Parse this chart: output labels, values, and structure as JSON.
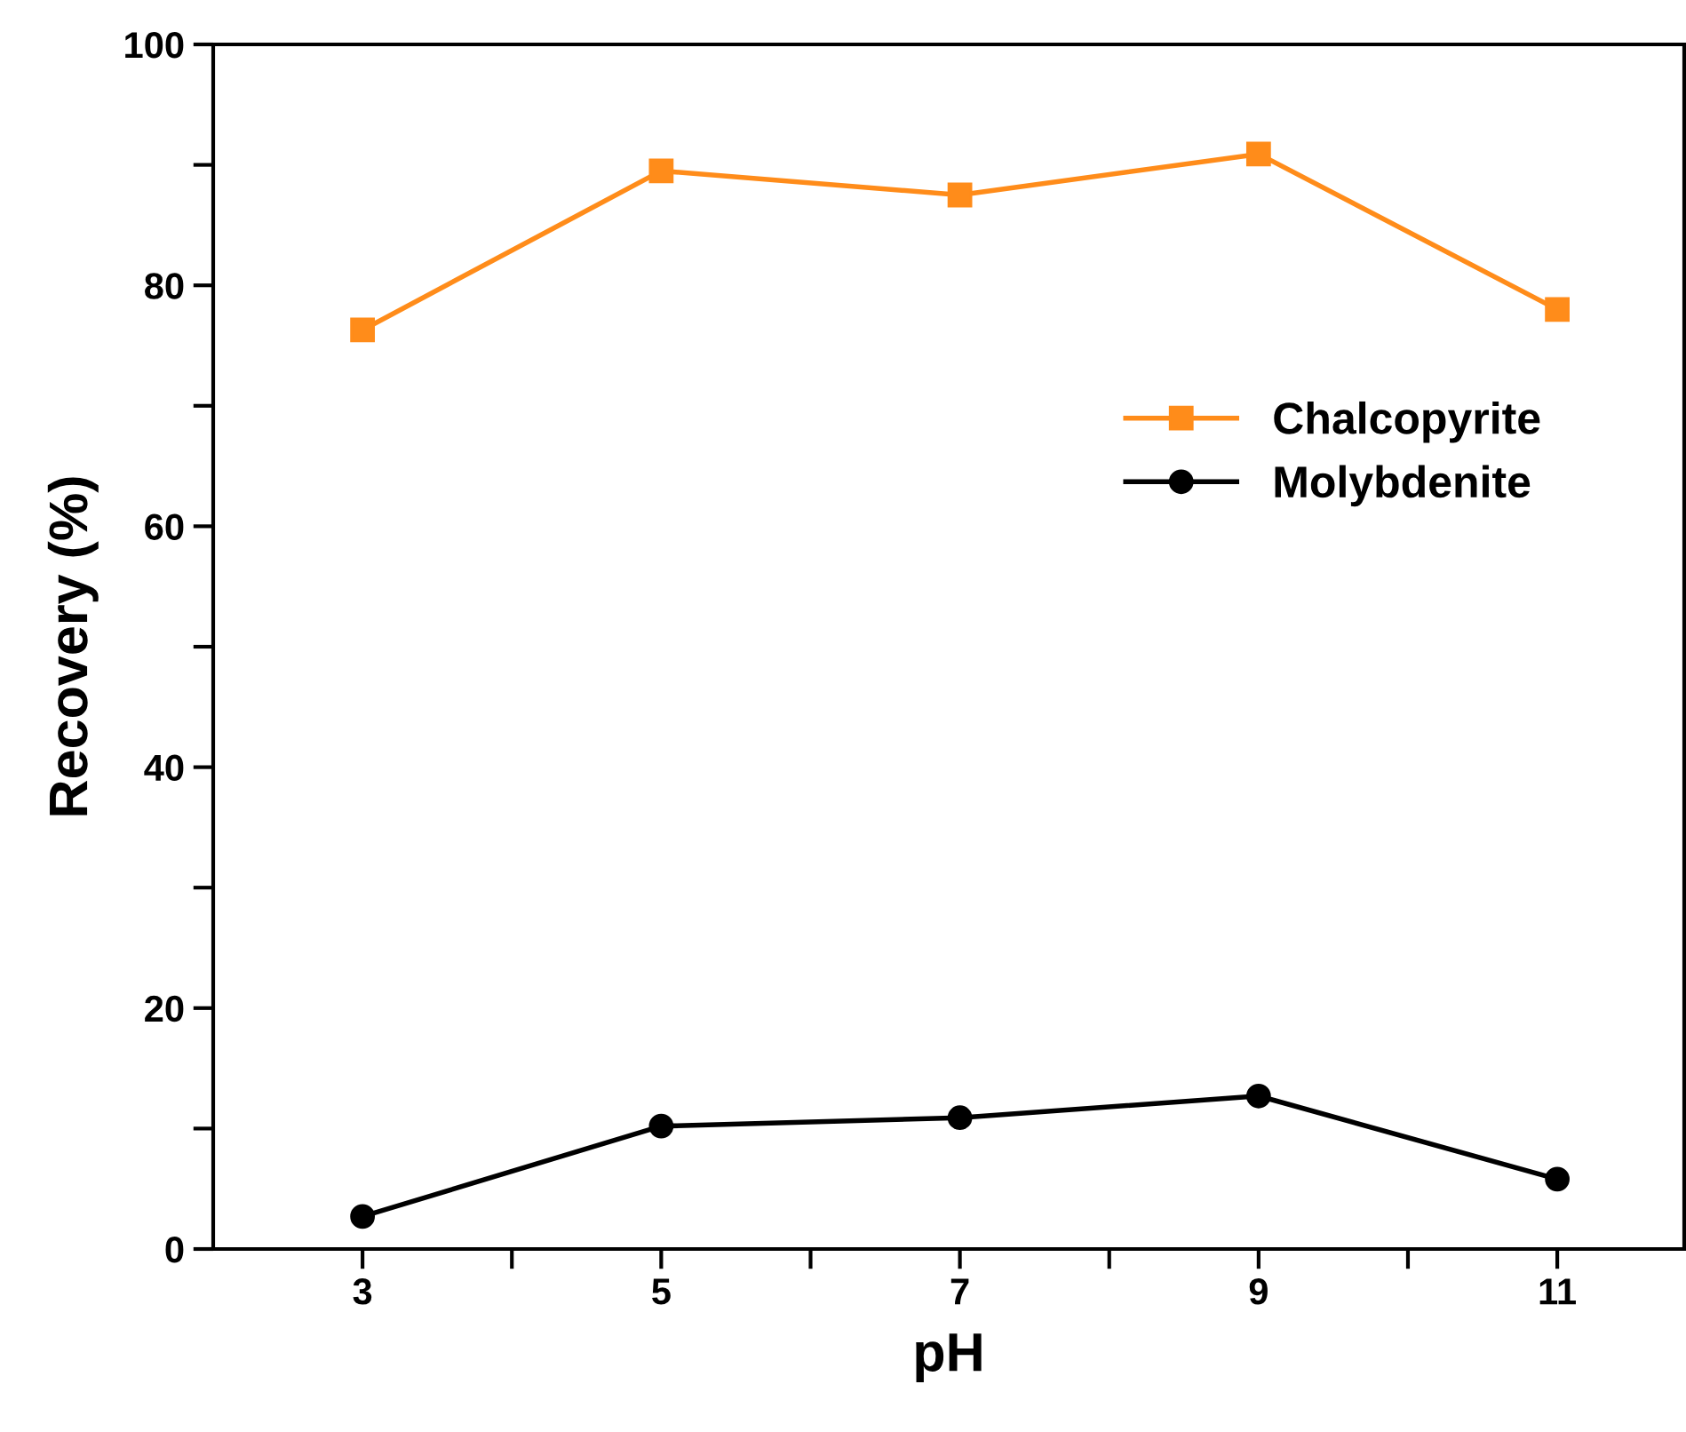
{
  "chart_data": {
    "type": "line",
    "xlabel": "pH",
    "ylabel": "Recovery (%)",
    "x": [
      3,
      5,
      7,
      9,
      11
    ],
    "series": [
      {
        "name": "Chalcopyrite",
        "color": "#ff8c1a",
        "marker": "square",
        "values": [
          76.3,
          89.5,
          87.5,
          90.9,
          78.0
        ]
      },
      {
        "name": "Molybdenite",
        "color": "#000000",
        "marker": "circle",
        "values": [
          2.7,
          10.2,
          10.9,
          12.7,
          5.8
        ]
      }
    ],
    "xlim": [
      2,
      11.85
    ],
    "ylim": [
      0,
      100
    ],
    "xticks": [
      3,
      {
        "value": 4,
        "label": null
      },
      5,
      {
        "value": 6,
        "label": null
      },
      7,
      {
        "value": 8,
        "label": null
      },
      9,
      {
        "value": 10,
        "label": null
      },
      11
    ],
    "yticks": [
      0,
      {
        "value": 10,
        "label": null
      },
      20,
      {
        "value": 30,
        "label": null
      },
      40,
      {
        "value": 50,
        "label": null
      },
      60,
      {
        "value": 70,
        "label": null
      },
      80,
      {
        "value": 90,
        "label": null
      },
      100
    ],
    "legend": "right",
    "grid": false,
    "line_style": "solid"
  }
}
